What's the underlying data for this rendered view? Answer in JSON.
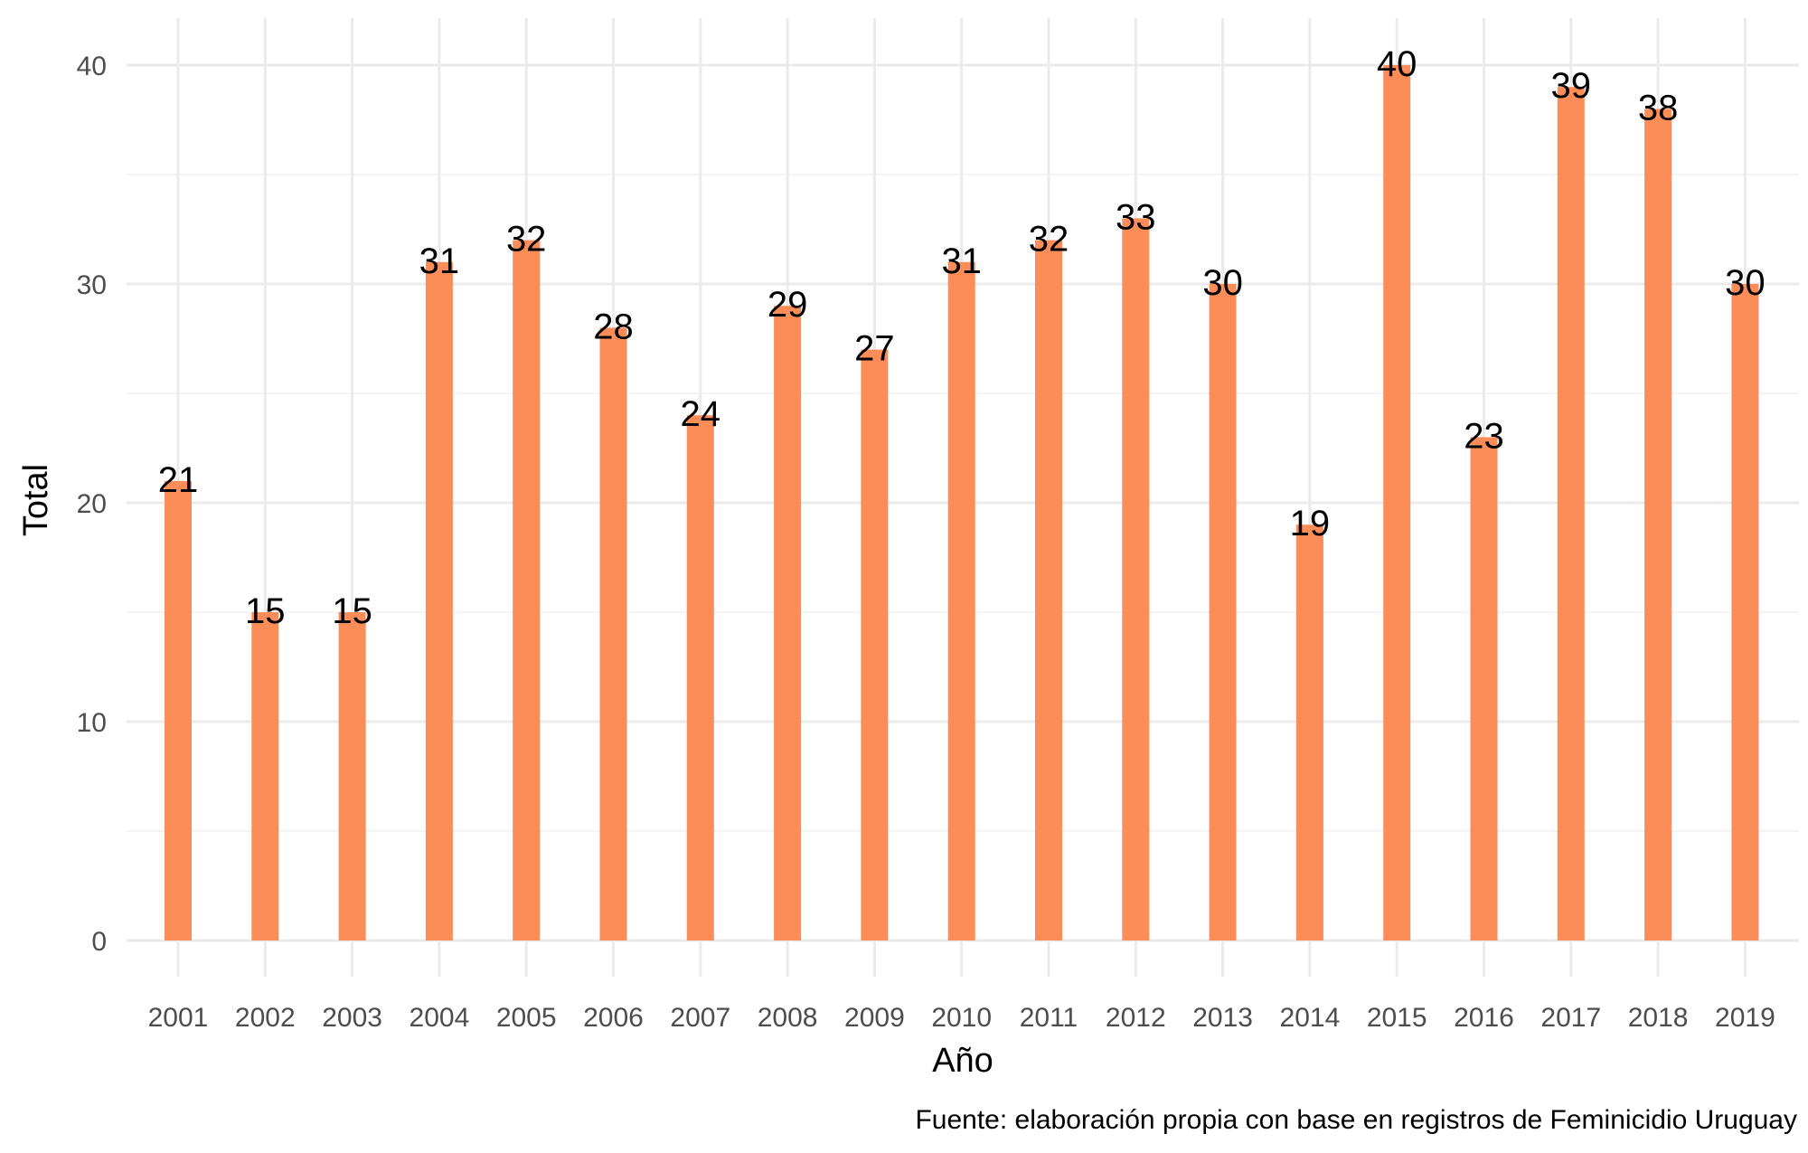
{
  "chart_data": {
    "type": "bar",
    "categories": [
      "2001",
      "2002",
      "2003",
      "2004",
      "2005",
      "2006",
      "2007",
      "2008",
      "2009",
      "2010",
      "2011",
      "2012",
      "2013",
      "2014",
      "2015",
      "2016",
      "2017",
      "2018",
      "2019"
    ],
    "values": [
      21,
      15,
      15,
      31,
      32,
      28,
      24,
      29,
      27,
      31,
      32,
      33,
      30,
      19,
      40,
      23,
      39,
      38,
      30
    ],
    "data_labels": [
      "21",
      "15",
      "15",
      "31",
      "32",
      "28",
      "24",
      "29",
      "27",
      "31",
      "32",
      "33",
      "30",
      "19",
      "40",
      "23",
      "39",
      "38",
      "30"
    ],
    "xlabel": "Año",
    "ylabel": "Total",
    "caption": "Fuente: elaboración propia con base en registros de Feminicidio Uruguay",
    "ylim": [
      0,
      41.5
    ],
    "yticks": [
      0,
      10,
      20,
      30,
      40
    ],
    "ytick_labels": [
      "0",
      "10",
      "20",
      "30",
      "40"
    ],
    "grid": true,
    "bar_color": "#fc8d59"
  }
}
